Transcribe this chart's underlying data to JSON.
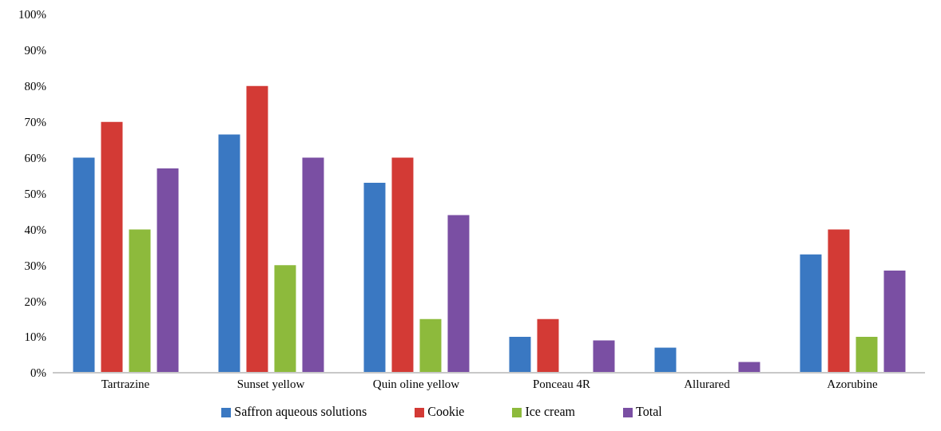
{
  "chart_data": {
    "type": "bar",
    "categories": [
      "Tartrazine",
      "Sunset yellow",
      "Quin oline yellow",
      "Ponceau 4R",
      "Allurared",
      "Azorubine"
    ],
    "series": [
      {
        "name": "Saffron aqueous solutions",
        "color": "#3a78c2",
        "values": [
          60,
          66.5,
          53,
          10,
          7,
          33
        ]
      },
      {
        "name": "Cookie",
        "color": "#d33a35",
        "values": [
          70,
          80,
          60,
          15,
          0,
          40
        ]
      },
      {
        "name": "Ice cream",
        "color": "#8dba3c",
        "values": [
          40,
          30,
          15,
          0,
          0,
          10
        ]
      },
      {
        "name": "Total",
        "color": "#7a4fa3",
        "values": [
          57,
          60,
          44,
          9,
          3,
          28.5
        ]
      }
    ],
    "ylim": [
      0,
      100
    ],
    "yticks": [
      {
        "value": 0,
        "label": "0%"
      },
      {
        "value": 10,
        "label": "10%"
      },
      {
        "value": 20,
        "label": "20%"
      },
      {
        "value": 30,
        "label": "30%"
      },
      {
        "value": 40,
        "label": "40%"
      },
      {
        "value": 50,
        "label": "50%"
      },
      {
        "value": 60,
        "label": "60%"
      },
      {
        "value": 70,
        "label": "70%"
      },
      {
        "value": 80,
        "label": "80%"
      },
      {
        "value": 90,
        "label": "90%"
      },
      {
        "value": 100,
        "label": "100%"
      }
    ],
    "grid": false,
    "legend": "bottom"
  }
}
